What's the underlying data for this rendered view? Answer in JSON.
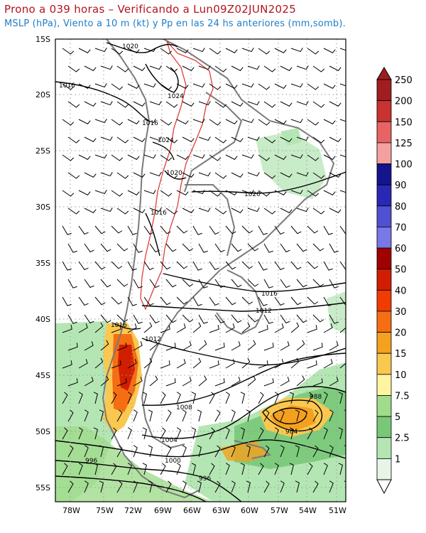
{
  "header": {
    "title": "Prono a 039 horas – Verificando a Lun09Z02JUN2025",
    "subtitle": "MSLP (hPa), Viento a 10 m (kt) y Pp en las 24 hs anteriores (mm,somb)."
  },
  "map": {
    "lat_ticks": [
      "15S",
      "20S",
      "25S",
      "30S",
      "35S",
      "40S",
      "45S",
      "50S",
      "55S"
    ],
    "lon_ticks": [
      "78W",
      "75W",
      "72W",
      "69W",
      "66W",
      "63W",
      "60W",
      "57W",
      "54W",
      "51W"
    ],
    "isobar_labels": [
      {
        "text": "1020",
        "id": "n1020a"
      },
      {
        "text": "1016",
        "id": "n1016a"
      },
      {
        "text": "1024",
        "id": "n1024"
      },
      {
        "text": "1016",
        "id": "n1016b"
      },
      {
        "text": "1024",
        "id": "n1024b"
      },
      {
        "text": "1020",
        "id": "n1020b"
      },
      {
        "text": "1020",
        "id": "n1020c"
      },
      {
        "text": "1016",
        "id": "n1016c"
      },
      {
        "text": "1016",
        "id": "n1016d"
      },
      {
        "text": "1012",
        "id": "n1012a"
      },
      {
        "text": "1016",
        "id": "n1016e"
      },
      {
        "text": "1012",
        "id": "n1012b"
      },
      {
        "text": "1008",
        "id": "n1008"
      },
      {
        "text": "988",
        "id": "n988"
      },
      {
        "text": "984",
        "id": "n984"
      },
      {
        "text": "1004",
        "id": "n1004"
      },
      {
        "text": "1000",
        "id": "n1000"
      },
      {
        "text": "996",
        "id": "n996a"
      },
      {
        "text": "996",
        "id": "n996b"
      }
    ],
    "colors": {
      "land_outline": "#7a7a7a",
      "isobar": "#000000",
      "topo": "#e03c3c"
    }
  },
  "colorbar": {
    "levels": [
      {
        "label": "250",
        "color": "#a01e1e"
      },
      {
        "label": "200",
        "color": "#c83232"
      },
      {
        "label": "150",
        "color": "#e66464"
      },
      {
        "label": "125",
        "color": "#f5a0a0"
      },
      {
        "label": "100",
        "color": "#14148c"
      },
      {
        "label": "90",
        "color": "#2828b4"
      },
      {
        "label": "80",
        "color": "#5050d2"
      },
      {
        "label": "70",
        "color": "#7878e6"
      },
      {
        "label": "60",
        "color": "#a00000"
      },
      {
        "label": "50",
        "color": "#d21e00"
      },
      {
        "label": "40",
        "color": "#f03c00"
      },
      {
        "label": "30",
        "color": "#f56e14"
      },
      {
        "label": "20",
        "color": "#f5a01e"
      },
      {
        "label": "15",
        "color": "#fac850"
      },
      {
        "label": "10",
        "color": "#fff5a0"
      },
      {
        "label": "7.5",
        "color": "#a0dc8c"
      },
      {
        "label": "5",
        "color": "#78c878"
      },
      {
        "label": "2.5",
        "color": "#b4e6b4"
      },
      {
        "label": "1",
        "color": "#e6f5e6"
      }
    ]
  }
}
